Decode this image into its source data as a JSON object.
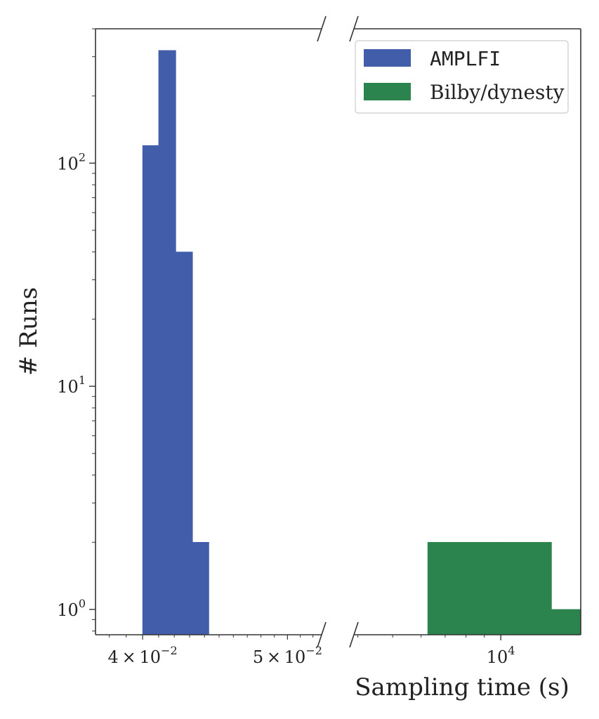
{
  "chart_data": {
    "type": "bar",
    "xlabel": "Sampling time (s)",
    "ylabel": "# Runs",
    "yscale": "log",
    "ylim": [
      0.77,
      400
    ],
    "yticks": [
      {
        "value": 1,
        "base": "10",
        "exp": "0"
      },
      {
        "value": 10,
        "base": "10",
        "exp": "1"
      },
      {
        "value": 100,
        "base": "10",
        "exp": "2"
      }
    ],
    "broken_x_axis": true,
    "left_panel": {
      "xscale": "log",
      "xlim": [
        0.0372,
        0.0527
      ],
      "xticks": [
        {
          "value": 0.04,
          "mant": "4",
          "times": "×",
          "base": "10",
          "exp": "−2"
        },
        {
          "value": 0.05,
          "mant": "5",
          "times": "×",
          "base": "10",
          "exp": "−2"
        }
      ],
      "series": "AMPLFI",
      "bins": [
        {
          "x0": 0.04,
          "x1": 0.041,
          "count": 120
        },
        {
          "x0": 0.041,
          "x1": 0.0421,
          "count": 320
        },
        {
          "x0": 0.0421,
          "x1": 0.0432,
          "count": 40
        },
        {
          "x0": 0.0432,
          "x1": 0.0443,
          "count": 2
        }
      ]
    },
    "right_panel": {
      "xscale": "log",
      "xlim": [
        3900,
        16700
      ],
      "xticks": [
        {
          "value": 10000,
          "base": "10",
          "exp": "4"
        }
      ],
      "series": "Bilby/dynesty",
      "bins": [
        {
          "x0": 6260,
          "x1": 10000,
          "count": 2
        },
        {
          "x0": 10000,
          "x1": 13850,
          "count": 2
        },
        {
          "x0": 13850,
          "x1": 16700,
          "count": 1
        }
      ]
    },
    "legend": {
      "placement": "top-right",
      "entries": [
        {
          "label": "AMPLFI",
          "color": "#425daa",
          "font": "mono"
        },
        {
          "label": "Bilby/dynesty",
          "color": "#2b844e",
          "font": "serif"
        }
      ]
    },
    "grid": false
  }
}
